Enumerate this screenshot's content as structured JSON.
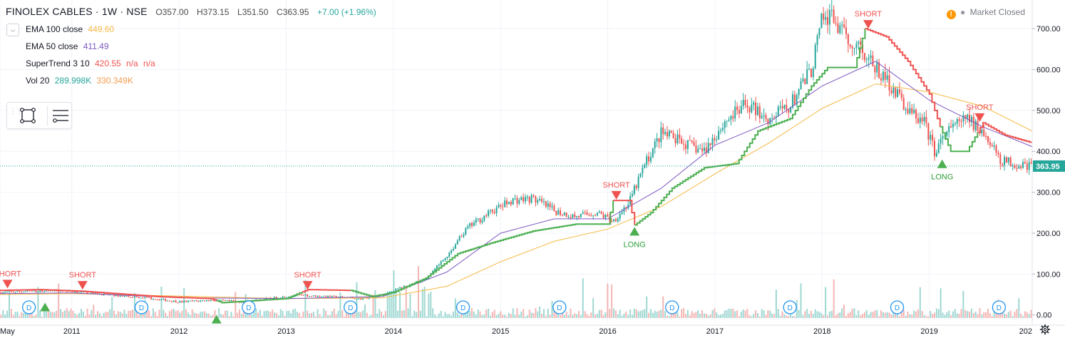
{
  "header": {
    "symbol": "FINOLEX CABLES · 1W · NSE",
    "open": "O357.00",
    "high": "H373.15",
    "low": "L351.50",
    "close": "C363.95",
    "change": "+7.00 (+1.96%)"
  },
  "indicators": [
    {
      "label": "EMA 100 close",
      "values": [
        "449.60"
      ],
      "colors": [
        "#f5b942"
      ]
    },
    {
      "label": "EMA 50 close",
      "values": [
        "411.49"
      ],
      "colors": [
        "#7e57c2"
      ]
    },
    {
      "label": "SuperTrend 3 10",
      "values": [
        "420.55",
        "n/a",
        "n/a"
      ],
      "colors": [
        "#ef5350",
        "#ef5350",
        "#ef5350"
      ]
    },
    {
      "label": "Vol 20",
      "values": [
        "289.998K",
        "330.349K"
      ],
      "colors": [
        "#26a69a",
        "#f39c4f"
      ]
    }
  ],
  "market_status": "Market Closed",
  "icons": {
    "collapse": "chevron-down-icon",
    "draw": "rectangle-tool-icon",
    "list": "object-tree-icon",
    "warning": "warning-icon",
    "settings": "gear-icon"
  },
  "colors": {
    "up": "#26a69a",
    "down": "#ef5350",
    "ema100": "#f5b942",
    "ema50": "#7e57c2",
    "supertrend_up": "#4caf50",
    "supertrend_down": "#ef5350",
    "vol_up": "#9fd8d2",
    "vol_down": "#f4b6b4",
    "last_price": "#26a69a"
  },
  "chart_data": {
    "type": "line",
    "price_axis": {
      "ticks": [
        "700.00",
        "600.00",
        "500.00",
        "400.00",
        "300.00",
        "200.00",
        "100.00",
        "0.00"
      ],
      "range": [
        -18,
        770
      ]
    },
    "time_axis": {
      "labels": [
        "May",
        "2011",
        "2012",
        "2013",
        "2014",
        "2015",
        "2016",
        "2017",
        "2018",
        "2019",
        "202"
      ],
      "range": [
        2010.33,
        2019.96
      ]
    },
    "last_price": "363.95",
    "series": [
      {
        "name": "Close",
        "x": [
          2010.33,
          2010.6,
          2010.9,
          2011.1,
          2011.4,
          2011.7,
          2012.0,
          2012.3,
          2012.6,
          2012.9,
          2013.1,
          2013.4,
          2013.7,
          2013.9,
          2014.1,
          2014.3,
          2014.5,
          2014.7,
          2014.9,
          2015.1,
          2015.3,
          2015.5,
          2015.7,
          2015.9,
          2016.05,
          2016.2,
          2016.35,
          2016.5,
          2016.7,
          2016.9,
          2017.1,
          2017.3,
          2017.5,
          2017.7,
          2017.9,
          2018.0,
          2018.1,
          2018.2,
          2018.35,
          2018.5,
          2018.65,
          2018.8,
          2018.95,
          2019.05,
          2019.2,
          2019.35,
          2019.5,
          2019.65,
          2019.8,
          2019.96
        ],
        "y": [
          55,
          58,
          60,
          55,
          48,
          42,
          32,
          36,
          32,
          42,
          48,
          45,
          40,
          48,
          70,
          85,
          145,
          215,
          250,
          280,
          285,
          255,
          240,
          250,
          230,
          275,
          370,
          445,
          420,
          400,
          475,
          515,
          480,
          510,
          600,
          720,
          730,
          680,
          660,
          600,
          560,
          500,
          470,
          400,
          455,
          480,
          450,
          380,
          370,
          363.95
        ]
      },
      {
        "name": "EMA 100",
        "x": [
          2010.33,
          2011.0,
          2012.0,
          2013.0,
          2013.9,
          2014.5,
          2015.0,
          2015.5,
          2016.0,
          2016.5,
          2017.0,
          2017.5,
          2018.0,
          2018.5,
          2019.0,
          2019.5,
          2019.96
        ],
        "y": [
          50,
          52,
          46,
          40,
          42,
          70,
          130,
          180,
          210,
          265,
          345,
          420,
          505,
          565,
          545,
          510,
          449.6
        ]
      },
      {
        "name": "EMA 50",
        "x": [
          2010.33,
          2011.0,
          2012.0,
          2013.0,
          2013.9,
          2014.5,
          2015.0,
          2015.5,
          2016.0,
          2016.5,
          2017.0,
          2017.5,
          2018.0,
          2018.5,
          2019.0,
          2019.5,
          2019.96
        ],
        "y": [
          52,
          54,
          42,
          40,
          45,
          105,
          200,
          235,
          235,
          310,
          415,
          470,
          560,
          620,
          525,
          460,
          411.49
        ]
      },
      {
        "name": "SuperTrend",
        "x": [
          2010.33,
          2010.7,
          2011.1,
          2011.8,
          2012.3,
          2012.4,
          2013.0,
          2013.2,
          2013.6,
          2013.8,
          2014.0,
          2014.3,
          2014.6,
          2014.9,
          2015.3,
          2015.7,
          2016.0,
          2016.05,
          2016.2,
          2016.25,
          2016.4,
          2016.6,
          2016.9,
          2017.2,
          2017.4,
          2017.7,
          2017.9,
          2018.05,
          2018.3,
          2018.4,
          2018.6,
          2018.8,
          2019.0,
          2019.1,
          2019.2,
          2019.35,
          2019.5,
          2019.7,
          2019.96
        ],
        "y": [
          60,
          62,
          58,
          45,
          40,
          30,
          40,
          62,
          60,
          45,
          55,
          90,
          150,
          175,
          205,
          222,
          222,
          280,
          280,
          220,
          250,
          310,
          360,
          370,
          450,
          480,
          560,
          605,
          605,
          700,
          680,
          620,
          540,
          460,
          400,
          400,
          470,
          440,
          420.55
        ],
        "segments": [
          {
            "from": 2010.33,
            "to": 2011.9,
            "dir": "down"
          },
          {
            "from": 2011.9,
            "to": 2012.35,
            "dir": "down"
          },
          {
            "from": 2012.35,
            "to": 2013.15,
            "dir": "up"
          },
          {
            "from": 2013.15,
            "to": 2013.6,
            "dir": "down"
          },
          {
            "from": 2013.6,
            "to": 2016.05,
            "dir": "up"
          },
          {
            "from": 2016.05,
            "to": 2016.25,
            "dir": "down"
          },
          {
            "from": 2016.25,
            "to": 2018.4,
            "dir": "up"
          },
          {
            "from": 2018.4,
            "to": 2019.1,
            "dir": "down"
          },
          {
            "from": 2019.1,
            "to": 2019.45,
            "dir": "up"
          },
          {
            "from": 2019.45,
            "to": 2019.96,
            "dir": "down"
          }
        ]
      }
    ],
    "signals": [
      {
        "label": "SHORT",
        "x": 2010.4,
        "y": 65,
        "dir": "down"
      },
      {
        "label": "SHORT",
        "x": 2011.1,
        "y": 62,
        "dir": "down"
      },
      {
        "label": "SHORT",
        "x": 2013.2,
        "y": 62,
        "dir": "down"
      },
      {
        "label": "SHORT",
        "x": 2016.08,
        "y": 282,
        "dir": "down"
      },
      {
        "label": "LONG",
        "x": 2016.25,
        "y": 215,
        "dir": "up"
      },
      {
        "label": "SHORT",
        "x": 2018.43,
        "y": 700,
        "dir": "down"
      },
      {
        "label": "LONG",
        "x": 2019.12,
        "y": 380,
        "dir": "up"
      },
      {
        "label": "SHORT",
        "x": 2019.47,
        "y": 472,
        "dir": "down"
      },
      {
        "label": "",
        "x": 2010.75,
        "y": 30,
        "dir": "up"
      },
      {
        "label": "",
        "x": 2012.35,
        "y": 0,
        "dir": "up"
      },
      {
        "label": "",
        "x": 2013.6,
        "y": 30,
        "dir": "up"
      }
    ],
    "dividends": {
      "label": "D",
      "x": [
        2010.6,
        2011.65,
        2012.65,
        2013.6,
        2014.65,
        2015.55,
        2016.6,
        2017.7,
        2018.7,
        2019.65
      ]
    },
    "ohlc_last": {
      "open": 357.0,
      "high": 373.15,
      "low": 351.5,
      "close": 363.95
    }
  }
}
